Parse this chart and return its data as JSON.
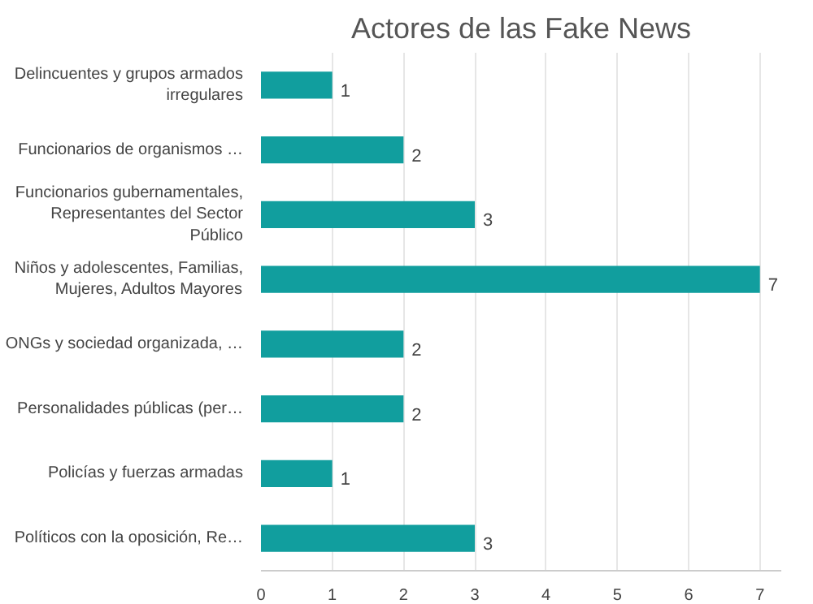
{
  "chart_data": {
    "type": "bar",
    "orientation": "horizontal",
    "title": "Actores de las Fake News",
    "categories": [
      "Delincuentes y grupos armados irregulares",
      "Funcionarios de organismos …",
      "Funcionarios gubernamentales, Representantes del Sector Público",
      "Niños y adolescentes, Familias, Mujeres, Adultos Mayores",
      "ONGs y sociedad organizada, …",
      "Personalidades públicas (per…",
      "Policías y fuerzas armadas",
      "Políticos con la oposición, Re…"
    ],
    "values": [
      1,
      2,
      3,
      7,
      2,
      2,
      1,
      3
    ],
    "color": "#119e9e",
    "xlim": [
      0,
      7.3
    ],
    "xticks": [
      0,
      1,
      2,
      3,
      4,
      5,
      6,
      7
    ],
    "grid": "x",
    "data_labels": true
  }
}
